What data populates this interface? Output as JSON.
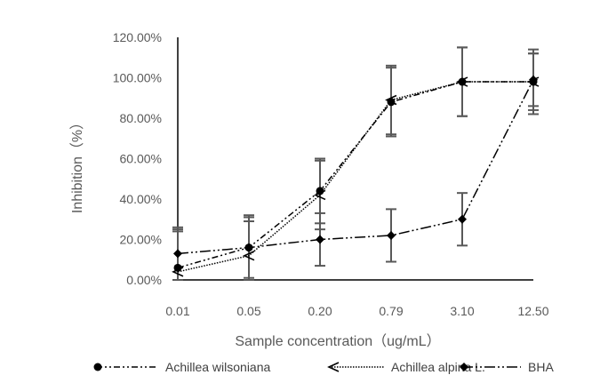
{
  "chart_data": {
    "type": "line",
    "xlabel": "Sample concentration（ug/mL）",
    "ylabel": "Inhibition（%）",
    "categories": [
      "0.01",
      "0.05",
      "0.20",
      "0.79",
      "3.10",
      "12.50"
    ],
    "ylim": [
      0,
      1.2
    ],
    "yticks": [
      "0.00%",
      "20.00%",
      "40.00%",
      "60.00%",
      "80.00%",
      "100.00%",
      "120.00%"
    ],
    "grid": false,
    "legend_position": "bottom",
    "series": [
      {
        "name": "Achillea wilsoniana",
        "marker": "circle",
        "dash": "dash-dot-dot",
        "color": "#000000",
        "values": [
          0.06,
          0.16,
          0.44,
          0.88,
          0.98,
          0.98
        ],
        "error": [
          0.19,
          0.16,
          0.16,
          0.17,
          0.17,
          0.14
        ]
      },
      {
        "name": "Achillea alpina L.",
        "marker": "open-arrow",
        "dash": "dotted",
        "color": "#000000",
        "values": [
          0.04,
          0.12,
          0.42,
          0.89,
          0.98,
          0.98
        ],
        "error": [
          0.2,
          0.17,
          0.17,
          0.17,
          0.17,
          0.16
        ]
      },
      {
        "name": "BHA",
        "marker": "diamond",
        "dash": "long-dash-dot-dot",
        "color": "#000000",
        "values": [
          0.13,
          0.16,
          0.2,
          0.22,
          0.3,
          0.99
        ],
        "error": [
          0.13,
          0.15,
          0.13,
          0.13,
          0.13,
          0.13
        ]
      }
    ]
  }
}
